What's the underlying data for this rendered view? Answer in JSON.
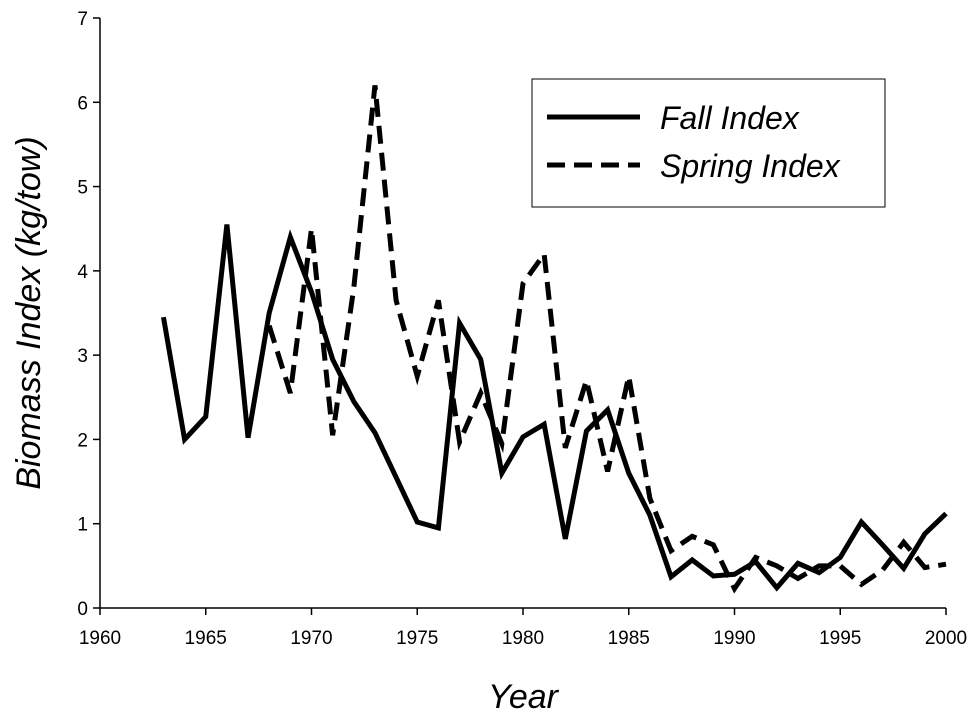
{
  "chart_data": {
    "type": "line",
    "x_label": "Year",
    "y_label": "Biomass Index (kg/tow)",
    "x": [
      1963,
      1964,
      1965,
      1966,
      1967,
      1968,
      1969,
      1970,
      1971,
      1972,
      1973,
      1974,
      1975,
      1976,
      1977,
      1978,
      1979,
      1980,
      1981,
      1982,
      1983,
      1984,
      1985,
      1986,
      1987,
      1988,
      1989,
      1990,
      1991,
      1992,
      1993,
      1994,
      1995,
      1996,
      1997,
      1998,
      1999,
      2000
    ],
    "series": [
      {
        "name": "Fall Index",
        "color": "#000000",
        "dash": "solid",
        "values": [
          3.45,
          2.0,
          2.27,
          4.55,
          2.02,
          3.5,
          4.4,
          3.75,
          2.95,
          2.45,
          2.08,
          1.55,
          1.02,
          0.95,
          3.38,
          2.95,
          1.6,
          2.03,
          2.18,
          0.82,
          2.1,
          2.35,
          1.6,
          1.1,
          0.37,
          0.57,
          0.38,
          0.4,
          0.55,
          0.24,
          0.53,
          0.42,
          0.6,
          1.02,
          0.75,
          0.47,
          0.88,
          1.12
        ]
      },
      {
        "name": "Spring Index",
        "color": "#000000",
        "dash": "dashed",
        "values": [
          null,
          null,
          null,
          null,
          null,
          3.35,
          2.55,
          4.5,
          2.05,
          3.8,
          6.2,
          3.65,
          2.75,
          3.65,
          1.97,
          2.55,
          1.95,
          3.85,
          4.2,
          1.9,
          2.7,
          1.62,
          2.75,
          1.3,
          0.68,
          0.85,
          0.75,
          0.23,
          0.6,
          0.5,
          0.35,
          0.5,
          0.5,
          0.28,
          0.45,
          0.78,
          0.48,
          0.52
        ]
      }
    ],
    "xlim": [
      1960,
      2000
    ],
    "xticks": [
      1960,
      1965,
      1970,
      1975,
      1980,
      1985,
      1990,
      1995,
      2000
    ],
    "ylim": [
      0,
      7
    ],
    "yticks": [
      0,
      1,
      2,
      3,
      4,
      5,
      6,
      7
    ],
    "legend": "upper right"
  }
}
